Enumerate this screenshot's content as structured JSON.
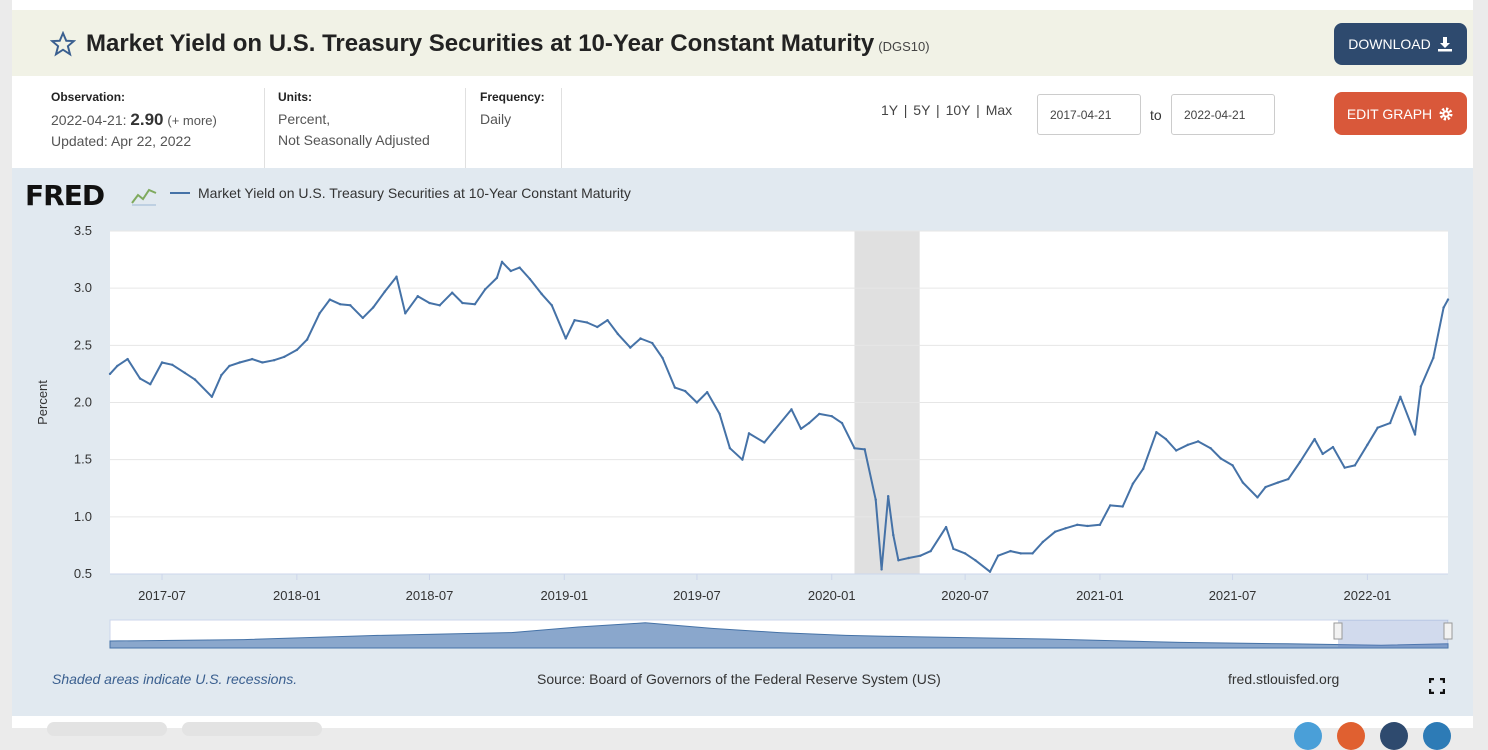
{
  "header": {
    "title": "Market Yield on U.S. Treasury Securities at 10-Year Constant Maturity",
    "series_id": "(DGS10)",
    "download_label": "DOWNLOAD",
    "edit_label": "EDIT GRAPH"
  },
  "meta": {
    "observation_label": "Observation:",
    "observation_date": "2022-04-21:",
    "observation_value": "2.90",
    "more_label": "(+ more)",
    "updated": "Updated: Apr 22, 2022",
    "units_label": "Units:",
    "units_line1": "Percent,",
    "units_line2": "Not Seasonally Adjusted",
    "frequency_label": "Frequency:",
    "frequency_value": "Daily"
  },
  "range": {
    "links": [
      "1Y",
      "5Y",
      "10Y",
      "Max"
    ],
    "start": "2017-04-21",
    "end": "2022-04-21",
    "to_label": "to"
  },
  "logo_text": "FRED",
  "footer": {
    "recession_note": "Shaded areas indicate U.S. recessions.",
    "source": "Source: Board of Governors of the Federal Reserve System (US)",
    "url": "fred.stlouisfed.org"
  },
  "colors": {
    "series": "#4572a7",
    "download": "#2e4a6e",
    "edit": "#d9583a",
    "recession": "#e0e0e0"
  },
  "chart_data": {
    "type": "line",
    "ylabel": "Percent",
    "ylim": [
      0.5,
      3.5
    ],
    "yticks": [
      "0.5",
      "1.0",
      "1.5",
      "2.0",
      "2.5",
      "3.0",
      "3.5"
    ],
    "xlim": [
      "2017-04-21",
      "2022-04-21"
    ],
    "xticks": [
      "2017-07",
      "2018-01",
      "2018-07",
      "2019-01",
      "2019-07",
      "2020-01",
      "2020-07",
      "2021-01",
      "2021-07",
      "2022-01"
    ],
    "grid": true,
    "legend": "top-left",
    "recessions": [
      {
        "start": "2020-02-01",
        "end": "2020-04-30"
      }
    ],
    "series": [
      {
        "name": "Market Yield on U.S. Treasury Securities at 10-Year Constant Maturity",
        "x": [
          "2017-04-21",
          "2017-05-01",
          "2017-05-15",
          "2017-06-01",
          "2017-06-15",
          "2017-07-01",
          "2017-07-15",
          "2017-08-01",
          "2017-08-15",
          "2017-09-07",
          "2017-09-20",
          "2017-10-01",
          "2017-10-15",
          "2017-11-01",
          "2017-11-15",
          "2017-12-01",
          "2017-12-15",
          "2018-01-01",
          "2018-01-15",
          "2018-02-01",
          "2018-02-15",
          "2018-03-01",
          "2018-03-15",
          "2018-04-01",
          "2018-04-15",
          "2018-05-01",
          "2018-05-17",
          "2018-05-29",
          "2018-06-15",
          "2018-07-01",
          "2018-07-15",
          "2018-08-01",
          "2018-08-15",
          "2018-09-01",
          "2018-09-15",
          "2018-10-01",
          "2018-10-08",
          "2018-10-20",
          "2018-11-01",
          "2018-11-15",
          "2018-12-01",
          "2018-12-15",
          "2019-01-03",
          "2019-01-15",
          "2019-02-01",
          "2019-02-15",
          "2019-03-01",
          "2019-03-15",
          "2019-04-01",
          "2019-04-15",
          "2019-05-01",
          "2019-05-15",
          "2019-06-01",
          "2019-06-15",
          "2019-07-01",
          "2019-07-15",
          "2019-08-01",
          "2019-08-15",
          "2019-09-01",
          "2019-09-10",
          "2019-10-01",
          "2019-10-15",
          "2019-11-07",
          "2019-11-20",
          "2019-12-01",
          "2019-12-15",
          "2020-01-01",
          "2020-01-15",
          "2020-02-01",
          "2020-02-15",
          "2020-03-01",
          "2020-03-09",
          "2020-03-18",
          "2020-03-25",
          "2020-04-01",
          "2020-04-15",
          "2020-05-01",
          "2020-05-15",
          "2020-06-05",
          "2020-06-15",
          "2020-07-01",
          "2020-07-15",
          "2020-08-04",
          "2020-08-15",
          "2020-09-01",
          "2020-09-15",
          "2020-10-01",
          "2020-10-15",
          "2020-11-01",
          "2020-11-15",
          "2020-12-01",
          "2020-12-15",
          "2021-01-01",
          "2021-01-15",
          "2021-02-01",
          "2021-02-15",
          "2021-03-01",
          "2021-03-19",
          "2021-04-01",
          "2021-04-15",
          "2021-05-01",
          "2021-05-15",
          "2021-06-01",
          "2021-06-15",
          "2021-07-01",
          "2021-07-15",
          "2021-08-04",
          "2021-08-15",
          "2021-09-01",
          "2021-09-15",
          "2021-10-01",
          "2021-10-21",
          "2021-11-01",
          "2021-11-15",
          "2021-12-01",
          "2021-12-15",
          "2022-01-01",
          "2022-01-15",
          "2022-02-01",
          "2022-02-15",
          "2022-03-07",
          "2022-03-15",
          "2022-04-01",
          "2022-04-15",
          "2022-04-21"
        ],
        "y": [
          2.25,
          2.32,
          2.38,
          2.21,
          2.16,
          2.35,
          2.33,
          2.26,
          2.2,
          2.05,
          2.24,
          2.32,
          2.35,
          2.38,
          2.35,
          2.37,
          2.4,
          2.46,
          2.55,
          2.78,
          2.9,
          2.86,
          2.85,
          2.74,
          2.83,
          2.97,
          3.1,
          2.78,
          2.93,
          2.87,
          2.85,
          2.96,
          2.87,
          2.86,
          2.99,
          3.09,
          3.23,
          3.15,
          3.18,
          3.08,
          2.95,
          2.85,
          2.56,
          2.72,
          2.7,
          2.66,
          2.72,
          2.6,
          2.48,
          2.56,
          2.52,
          2.39,
          2.13,
          2.1,
          2.0,
          2.09,
          1.9,
          1.6,
          1.5,
          1.73,
          1.65,
          1.76,
          1.94,
          1.77,
          1.82,
          1.9,
          1.88,
          1.82,
          1.6,
          1.59,
          1.15,
          0.54,
          1.18,
          0.84,
          0.62,
          0.64,
          0.66,
          0.7,
          0.91,
          0.72,
          0.68,
          0.62,
          0.52,
          0.66,
          0.7,
          0.68,
          0.68,
          0.78,
          0.87,
          0.9,
          0.93,
          0.92,
          0.93,
          1.1,
          1.09,
          1.29,
          1.42,
          1.74,
          1.68,
          1.58,
          1.63,
          1.66,
          1.6,
          1.51,
          1.45,
          1.3,
          1.17,
          1.26,
          1.3,
          1.33,
          1.48,
          1.68,
          1.55,
          1.61,
          1.43,
          1.45,
          1.63,
          1.78,
          1.82,
          2.05,
          1.72,
          2.14,
          2.39,
          2.83,
          2.9
        ]
      }
    ]
  }
}
